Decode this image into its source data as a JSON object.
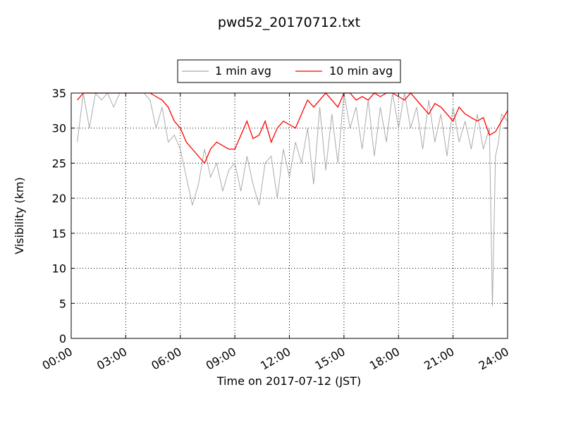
{
  "chart_data": {
    "type": "line",
    "title": "pwd52_20170712.txt",
    "xlabel": "Time on 2017-07-12 (JST)",
    "ylabel": "Visibility (km)",
    "xlim": [
      "00:00",
      "24:00"
    ],
    "ylim": [
      0,
      35
    ],
    "x_ticks": [
      "00:00",
      "03:00",
      "06:00",
      "09:00",
      "12:00",
      "15:00",
      "18:00",
      "21:00",
      "24:00"
    ],
    "y_ticks": [
      "0",
      "5",
      "10",
      "15",
      "20",
      "25",
      "30",
      "35"
    ],
    "grid": true,
    "legend_position": "top-center",
    "series": [
      {
        "name": "1 min avg",
        "color": "#aaaaaa",
        "x": [
          "00:20",
          "00:40",
          "01:00",
          "01:20",
          "01:40",
          "02:00",
          "02:20",
          "02:40",
          "03:00",
          "03:20",
          "03:40",
          "04:00",
          "04:20",
          "04:40",
          "05:00",
          "05:20",
          "05:40",
          "06:00",
          "06:20",
          "06:40",
          "07:00",
          "07:20",
          "07:40",
          "08:00",
          "08:20",
          "08:40",
          "09:00",
          "09:20",
          "09:40",
          "10:00",
          "10:20",
          "10:40",
          "11:00",
          "11:20",
          "11:40",
          "12:00",
          "12:20",
          "12:40",
          "13:00",
          "13:20",
          "13:40",
          "14:00",
          "14:20",
          "14:40",
          "15:00",
          "15:20",
          "15:40",
          "16:00",
          "16:20",
          "16:40",
          "17:00",
          "17:20",
          "17:40",
          "18:00",
          "18:20",
          "18:40",
          "19:00",
          "19:20",
          "19:40",
          "20:00",
          "20:20",
          "20:40",
          "21:00",
          "21:20",
          "21:40",
          "22:00",
          "22:20",
          "22:40",
          "23:00",
          "23:10",
          "23:20",
          "23:30",
          "23:40",
          "24:00"
        ],
        "y": [
          28,
          35,
          30,
          35,
          34,
          35,
          33,
          35,
          35,
          35,
          35,
          35,
          34,
          30,
          33,
          28,
          29,
          27,
          23,
          19,
          22,
          27,
          23,
          25,
          21,
          24,
          25,
          21,
          26,
          22,
          19,
          25,
          26,
          20,
          27,
          23,
          28,
          25,
          30,
          22,
          33,
          24,
          32,
          25,
          35,
          30,
          33,
          27,
          34,
          26,
          33,
          28,
          35,
          30,
          35,
          30,
          33,
          27,
          34,
          28,
          32,
          26,
          33,
          28,
          31,
          27,
          32,
          27,
          30,
          4.6,
          26,
          28,
          32,
          31
        ],
        "min_value": 4.6
      },
      {
        "name": "10 min avg",
        "color": "#ff0000",
        "x": [
          "00:20",
          "00:40",
          "01:00",
          "01:20",
          "01:40",
          "02:00",
          "02:20",
          "02:40",
          "03:00",
          "03:20",
          "03:40",
          "04:00",
          "04:20",
          "04:40",
          "05:00",
          "05:20",
          "05:40",
          "06:00",
          "06:20",
          "06:40",
          "07:00",
          "07:20",
          "07:40",
          "08:00",
          "08:20",
          "08:40",
          "09:00",
          "09:20",
          "09:40",
          "10:00",
          "10:20",
          "10:40",
          "11:00",
          "11:20",
          "11:40",
          "12:00",
          "12:20",
          "12:40",
          "13:00",
          "13:20",
          "13:40",
          "14:00",
          "14:20",
          "14:40",
          "15:00",
          "15:20",
          "15:40",
          "16:00",
          "16:20",
          "16:40",
          "17:00",
          "17:20",
          "17:40",
          "18:00",
          "18:20",
          "18:40",
          "19:00",
          "19:20",
          "19:40",
          "20:00",
          "20:20",
          "20:40",
          "21:00",
          "21:20",
          "21:40",
          "22:00",
          "22:20",
          "22:40",
          "23:00",
          "23:20",
          "23:40",
          "24:00"
        ],
        "y": [
          34,
          35,
          35,
          35,
          35,
          35,
          35,
          35,
          35,
          35,
          35,
          35,
          35,
          34.5,
          34,
          33,
          31,
          30,
          28,
          27,
          26,
          25,
          27,
          28,
          27.5,
          27,
          27,
          29,
          31,
          28.5,
          29,
          31,
          28,
          30,
          31,
          30.5,
          30,
          32,
          34,
          33,
          34,
          35,
          34,
          33,
          35,
          35,
          34,
          34.5,
          34,
          35,
          34.5,
          35,
          35,
          34.5,
          34,
          35,
          34,
          33,
          32,
          33.5,
          33,
          32,
          31,
          33,
          32,
          31.5,
          31,
          31.5,
          29,
          29.5,
          31,
          32.5
        ]
      }
    ]
  }
}
